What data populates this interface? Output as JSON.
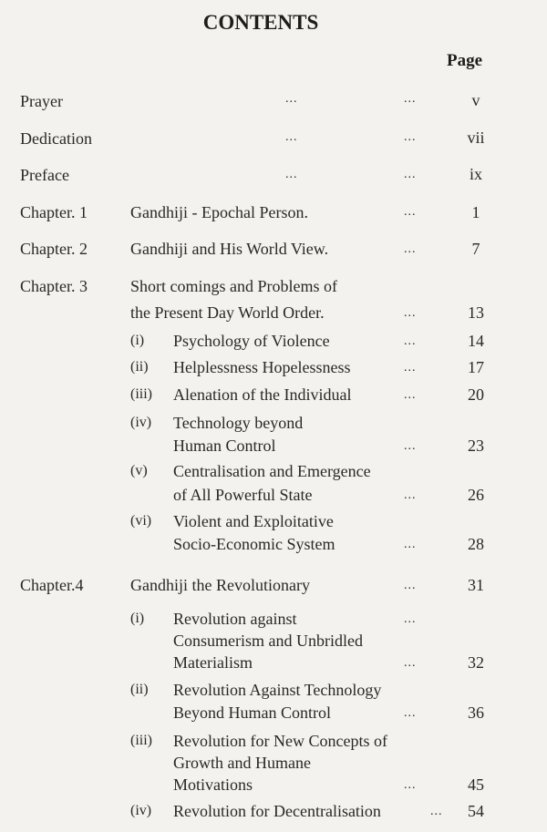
{
  "heading": "CONTENTS",
  "page_column_label": "Page",
  "leader": "...",
  "front_matter": [
    {
      "title": "Prayer",
      "page": "v"
    },
    {
      "title": "Dedication",
      "page": "vii"
    },
    {
      "title": "Preface",
      "page": "ix"
    }
  ],
  "chapters": [
    {
      "label": "Chapter. 1",
      "title": [
        "Gandhiji - Epochal Person."
      ],
      "page": "1",
      "sections": []
    },
    {
      "label": "Chapter. 2",
      "title": [
        "Gandhiji and His World View."
      ],
      "page": "7",
      "sections": []
    },
    {
      "label": "Chapter. 3",
      "title": [
        "Short comings and Problems of",
        "the Present Day World Order."
      ],
      "page": "13",
      "sections": [
        {
          "num": "(i)",
          "title": [
            "Psychology of Violence"
          ],
          "page": "14"
        },
        {
          "num": "(ii)",
          "title": [
            "Helplessness Hopelessness"
          ],
          "page": "17"
        },
        {
          "num": "(iii)",
          "title": [
            "Alenation of the Individual"
          ],
          "page": "20"
        },
        {
          "num": "(iv)",
          "title": [
            "Technology beyond",
            "Human Control"
          ],
          "page": "23"
        },
        {
          "num": "(v)",
          "title": [
            "Centralisation and Emergence",
            "of All Powerful State"
          ],
          "page": "26"
        },
        {
          "num": "(vi)",
          "title": [
            "Violent and Exploitative",
            "Socio-Economic System"
          ],
          "page": "28"
        }
      ]
    },
    {
      "label": "Chapter.4",
      "title": [
        "Gandhiji the Revolutionary"
      ],
      "page": "31",
      "sections": [
        {
          "num": "(i)",
          "title": [
            "Revolution against",
            "Consumerism and Unbridled",
            "Materialism"
          ],
          "page": "32"
        },
        {
          "num": "(ii)",
          "title": [
            "Revolution Against Technology",
            "Beyond Human Control"
          ],
          "page": "36"
        },
        {
          "num": "(iii)",
          "title": [
            "Revolution for New Concepts of",
            "Growth and Humane",
            "Motivations"
          ],
          "page": "45"
        },
        {
          "num": "(iv)",
          "title": [
            "Revolution for Decentralisation"
          ],
          "page": "54"
        }
      ]
    }
  ]
}
